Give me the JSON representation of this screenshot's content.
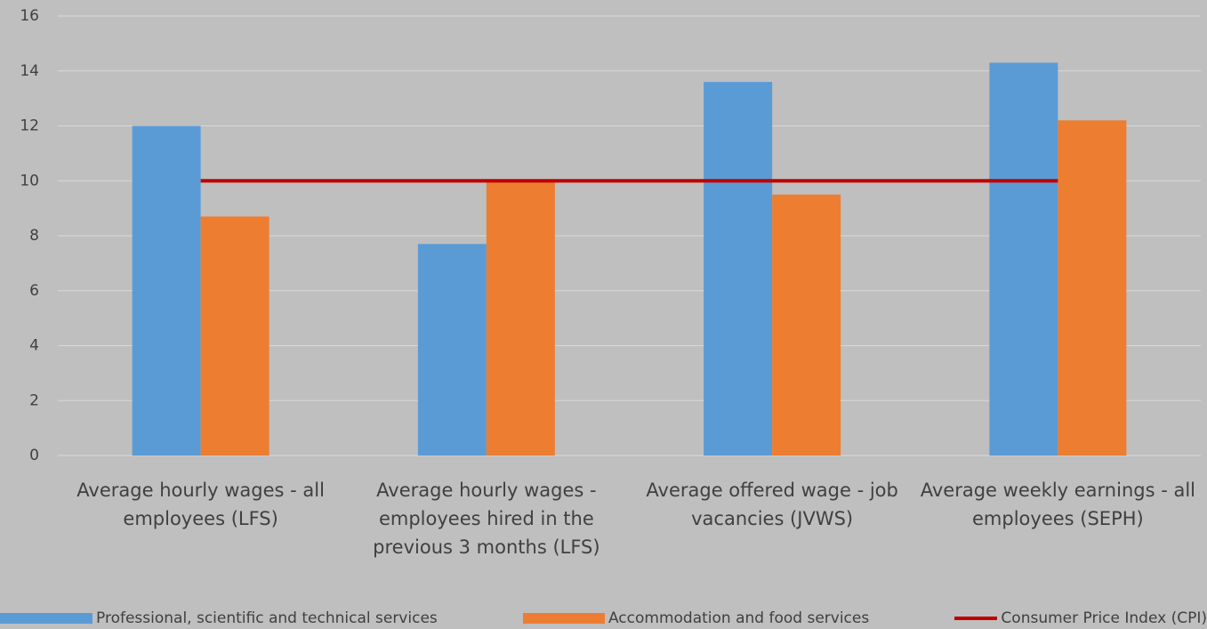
{
  "chart_data": {
    "type": "bar",
    "categories": [
      "Average hourly wages - all employees (LFS)",
      "Average hourly wages - employees hired in the previous 3 months (LFS)",
      "Average offered wage - job vacancies (JVWS)",
      "Average weekly earnings - all employees (SEPH)"
    ],
    "series": [
      {
        "name": "Professional, scientific and technical services",
        "color": "#5b9bd5",
        "values": [
          12,
          7.7,
          13.6,
          14.3
        ]
      },
      {
        "name": "Accommodation and food services",
        "color": "#ed7d31",
        "values": [
          8.7,
          10,
          9.5,
          12.2
        ]
      },
      {
        "name": "Consumer Price Index (CPI)",
        "color": "#c00000",
        "type": "line",
        "values": [
          10,
          10,
          10,
          10
        ]
      }
    ],
    "ylim": [
      0,
      16
    ],
    "yticks": [
      0,
      2,
      4,
      6,
      8,
      10,
      12,
      14,
      16
    ],
    "grid": true,
    "legend": "bottom"
  }
}
